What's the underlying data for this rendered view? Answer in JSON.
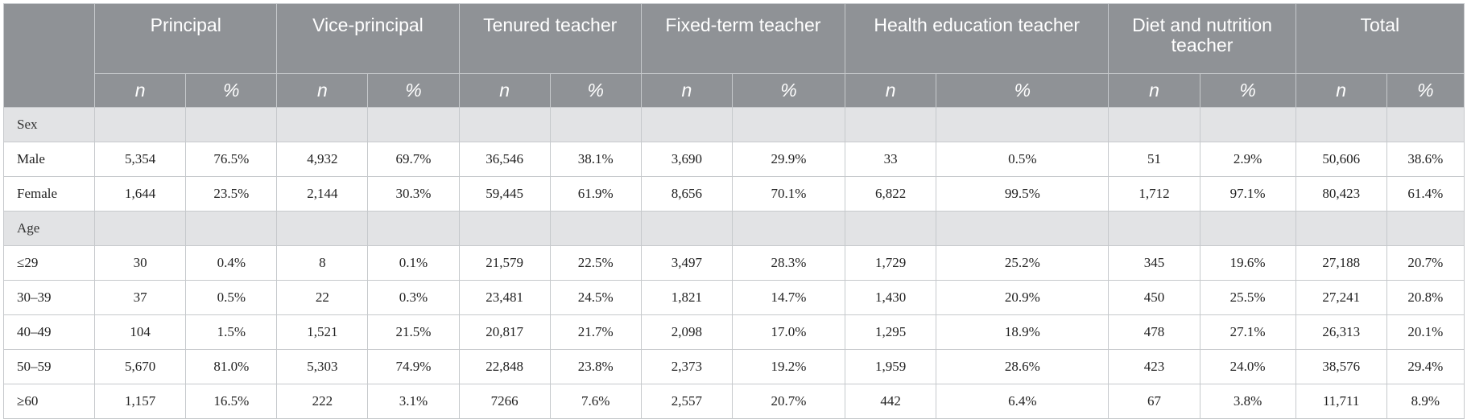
{
  "table": {
    "group_headers": [
      "Principal",
      "Vice-principal",
      "Tenured teacher",
      "Fixed-term teacher",
      "Health education teacher",
      "Diet and nutrition teacher",
      "Total"
    ],
    "sub_headers": [
      "n",
      "%"
    ],
    "sections": [
      {
        "label": "Sex",
        "rows": [
          {
            "label": "Male",
            "cells": [
              "5,354",
              "76.5%",
              "4,932",
              "69.7%",
              "36,546",
              "38.1%",
              "3,690",
              "29.9%",
              "33",
              "0.5%",
              "51",
              "2.9%",
              "50,606",
              "38.6%"
            ]
          },
          {
            "label": "Female",
            "cells": [
              "1,644",
              "23.5%",
              "2,144",
              "30.3%",
              "59,445",
              "61.9%",
              "8,656",
              "70.1%",
              "6,822",
              "99.5%",
              "1,712",
              "97.1%",
              "80,423",
              "61.4%"
            ]
          }
        ]
      },
      {
        "label": "Age",
        "rows": [
          {
            "label": "≤29",
            "cells": [
              "30",
              "0.4%",
              "8",
              "0.1%",
              "21,579",
              "22.5%",
              "3,497",
              "28.3%",
              "1,729",
              "25.2%",
              "345",
              "19.6%",
              "27,188",
              "20.7%"
            ]
          },
          {
            "label": "30–39",
            "cells": [
              "37",
              "0.5%",
              "22",
              "0.3%",
              "23,481",
              "24.5%",
              "1,821",
              "14.7%",
              "1,430",
              "20.9%",
              "450",
              "25.5%",
              "27,241",
              "20.8%"
            ]
          },
          {
            "label": "40–49",
            "cells": [
              "104",
              "1.5%",
              "1,521",
              "21.5%",
              "20,817",
              "21.7%",
              "2,098",
              "17.0%",
              "1,295",
              "18.9%",
              "478",
              "27.1%",
              "26,313",
              "20.1%"
            ]
          },
          {
            "label": "50–59",
            "cells": [
              "5,670",
              "81.0%",
              "5,303",
              "74.9%",
              "22,848",
              "23.8%",
              "2,373",
              "19.2%",
              "1,959",
              "28.6%",
              "423",
              "24.0%",
              "38,576",
              "29.4%"
            ]
          },
          {
            "label": "≥60",
            "cells": [
              "1,157",
              "16.5%",
              "222",
              "3.1%",
              "7266",
              "7.6%",
              "2,557",
              "20.7%",
              "442",
              "6.4%",
              "67",
              "3.8%",
              "11,711",
              "8.9%"
            ]
          }
        ]
      }
    ],
    "colors": {
      "header_bg": "#8f9296",
      "header_text": "#ffffff",
      "section_bg": "#e2e3e5",
      "grid": "#c6c9cc",
      "body_text": "#222222"
    }
  }
}
